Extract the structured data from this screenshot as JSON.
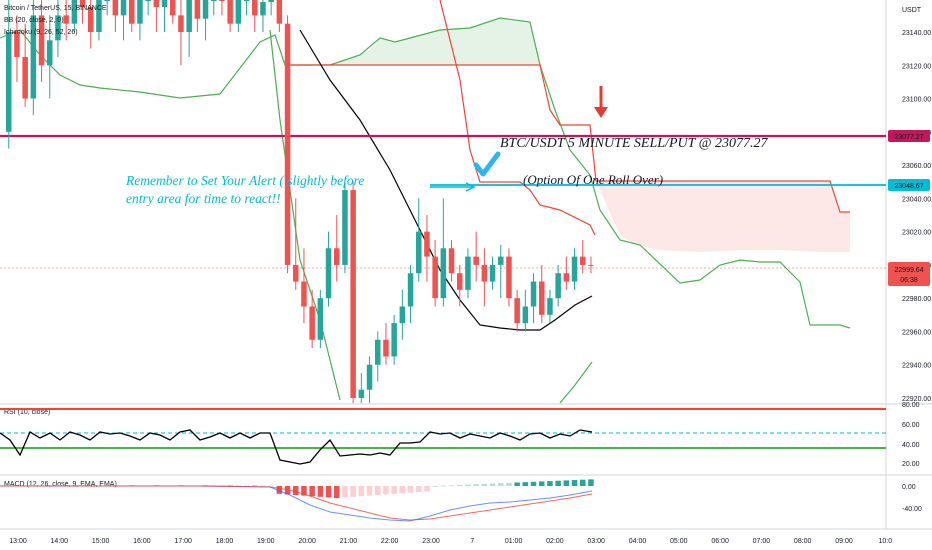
{
  "header": {
    "symbol": "Bitcoin / TetherUS, 15, BINANCE",
    "bb": "BB (20, close, 2, 0)",
    "ichimoku": "Ichimoku (9, 26, 52, 26)"
  },
  "rsi_label": "RSI (10, close)",
  "macd_label": "MACD (12, 26, close, 9, EMA, EMA)",
  "price_unit": "USDT",
  "price_ticks": [
    "23140.00",
    "23120.00",
    "23100.00",
    "23080.00",
    "23060.00",
    "23040.00",
    "23020.00",
    "23000.00",
    "22980.00",
    "22960.00",
    "22940.00",
    "22920.00"
  ],
  "rsi_ticks": [
    "80.00",
    "60.00",
    "40.00",
    "20.00"
  ],
  "macd_ticks": [
    "0.00",
    "-40.00"
  ],
  "time_ticks": [
    "13:00",
    "14:00",
    "15:00",
    "16:00",
    "17:00",
    "18:00",
    "19:00",
    "20:00",
    "21:00",
    "22:00",
    "23:00",
    "7",
    "01:00",
    "02:00",
    "03:00",
    "04:00",
    "05:00",
    "06:00",
    "07:00",
    "08:00",
    "09:00",
    "10:0"
  ],
  "badges": {
    "sell": "23077.27",
    "alert": "23048.67",
    "last": "22999.64",
    "countdown": "06:38"
  },
  "annotations": {
    "title": "BTC/USDT 5 MINUTE SELL/PUT @ 23077.27",
    "option": "(Option Of One Roll Over)",
    "alert_line1": "Remember to Set Your Alert ( slightly before",
    "alert_line2": "entry area for time to react!!"
  },
  "colors": {
    "up": "#26a69a",
    "down": "#ef5350",
    "sell_line": "#c2185b",
    "alert_line": "#00bcd4",
    "annotation_text": "#00bcd4",
    "arrow": "#e53935",
    "check": "#29b6f6",
    "bb_line": "#000000",
    "cloud_green": "#4caf50",
    "cloud_red": "#f44336",
    "rsi_upper": "#f44336",
    "rsi_lower": "#4caf50",
    "macd_line": "#2962ff",
    "signal_line": "#f44336"
  },
  "chart_data": {
    "type": "candlestick",
    "symbol": "BTCUSDT",
    "interval": "15",
    "price_range": [
      22920,
      23150
    ],
    "levels": {
      "sell": 23077.27,
      "alert": 23048.67,
      "last": 22999.64
    },
    "candles": [
      {
        "o": 23080,
        "h": 23160,
        "l": 23070,
        "c": 23140
      },
      {
        "o": 23140,
        "h": 23150,
        "l": 23110,
        "c": 23125
      },
      {
        "o": 23125,
        "h": 23145,
        "l": 23095,
        "c": 23100
      },
      {
        "o": 23100,
        "h": 23160,
        "l": 23090,
        "c": 23150
      },
      {
        "o": 23150,
        "h": 23170,
        "l": 23110,
        "c": 23120
      },
      {
        "o": 23120,
        "h": 23150,
        "l": 23100,
        "c": 23135
      },
      {
        "o": 23135,
        "h": 23160,
        "l": 23125,
        "c": 23150
      },
      {
        "o": 23150,
        "h": 23165,
        "l": 23135,
        "c": 23145
      },
      {
        "o": 23145,
        "h": 23170,
        "l": 23140,
        "c": 23165
      },
      {
        "o": 23165,
        "h": 23175,
        "l": 23145,
        "c": 23155
      },
      {
        "o": 23155,
        "h": 23160,
        "l": 23130,
        "c": 23140
      },
      {
        "o": 23140,
        "h": 23165,
        "l": 23135,
        "c": 23160
      },
      {
        "o": 23160,
        "h": 23175,
        "l": 23150,
        "c": 23170
      },
      {
        "o": 23170,
        "h": 23175,
        "l": 23140,
        "c": 23150
      },
      {
        "o": 23150,
        "h": 23165,
        "l": 23135,
        "c": 23160
      },
      {
        "o": 23160,
        "h": 23175,
        "l": 23140,
        "c": 23145
      },
      {
        "o": 23145,
        "h": 23165,
        "l": 23135,
        "c": 23160
      },
      {
        "o": 23160,
        "h": 23175,
        "l": 23150,
        "c": 23170
      },
      {
        "o": 23170,
        "h": 23175,
        "l": 23140,
        "c": 23155
      },
      {
        "o": 23155,
        "h": 23170,
        "l": 23140,
        "c": 23165
      },
      {
        "o": 23165,
        "h": 23175,
        "l": 23145,
        "c": 23150
      },
      {
        "o": 23150,
        "h": 23160,
        "l": 23120,
        "c": 23140
      },
      {
        "o": 23140,
        "h": 23165,
        "l": 23125,
        "c": 23160
      },
      {
        "o": 23160,
        "h": 23170,
        "l": 23140,
        "c": 23148
      },
      {
        "o": 23148,
        "h": 23165,
        "l": 23135,
        "c": 23160
      },
      {
        "o": 23160,
        "h": 23175,
        "l": 23150,
        "c": 23170
      },
      {
        "o": 23170,
        "h": 23175,
        "l": 23150,
        "c": 23160
      },
      {
        "o": 23160,
        "h": 23170,
        "l": 23140,
        "c": 23145
      },
      {
        "o": 23145,
        "h": 23165,
        "l": 23140,
        "c": 23160
      },
      {
        "o": 23160,
        "h": 23175,
        "l": 23150,
        "c": 23170
      },
      {
        "o": 23170,
        "h": 23175,
        "l": 23140,
        "c": 23150
      },
      {
        "o": 23150,
        "h": 23165,
        "l": 23140,
        "c": 23158
      },
      {
        "o": 23158,
        "h": 23175,
        "l": 23150,
        "c": 23170
      },
      {
        "o": 23170,
        "h": 23172,
        "l": 23140,
        "c": 23145
      },
      {
        "o": 23145,
        "h": 23150,
        "l": 22995,
        "c": 23000
      },
      {
        "o": 23000,
        "h": 23040,
        "l": 22985,
        "c": 22990
      },
      {
        "o": 22990,
        "h": 23010,
        "l": 22965,
        "c": 22975
      },
      {
        "o": 22975,
        "h": 22985,
        "l": 22950,
        "c": 22955
      },
      {
        "o": 22955,
        "h": 22985,
        "l": 22950,
        "c": 22980
      },
      {
        "o": 22980,
        "h": 23020,
        "l": 22975,
        "c": 23010
      },
      {
        "o": 23010,
        "h": 23030,
        "l": 22990,
        "c": 23000
      },
      {
        "o": 23000,
        "h": 23050,
        "l": 22995,
        "c": 23045
      },
      {
        "o": 23045,
        "h": 23050,
        "l": 22910,
        "c": 22920
      },
      {
        "o": 22920,
        "h": 22935,
        "l": 22905,
        "c": 22925
      },
      {
        "o": 22925,
        "h": 22945,
        "l": 22915,
        "c": 22940
      },
      {
        "o": 22940,
        "h": 22960,
        "l": 22930,
        "c": 22955
      },
      {
        "o": 22955,
        "h": 22965,
        "l": 22940,
        "c": 22945
      },
      {
        "o": 22945,
        "h": 22970,
        "l": 22940,
        "c": 22965
      },
      {
        "o": 22965,
        "h": 22985,
        "l": 22955,
        "c": 22975
      },
      {
        "o": 22975,
        "h": 23000,
        "l": 22965,
        "c": 22995
      },
      {
        "o": 22995,
        "h": 23040,
        "l": 22990,
        "c": 23020
      },
      {
        "o": 23020,
        "h": 23030,
        "l": 22990,
        "c": 23005
      },
      {
        "o": 23005,
        "h": 23015,
        "l": 22975,
        "c": 22980
      },
      {
        "o": 22980,
        "h": 23040,
        "l": 22975,
        "c": 23010
      },
      {
        "o": 23010,
        "h": 23015,
        "l": 22990,
        "c": 22995
      },
      {
        "o": 22995,
        "h": 23000,
        "l": 22975,
        "c": 22985
      },
      {
        "o": 22985,
        "h": 23010,
        "l": 22980,
        "c": 23005
      },
      {
        "o": 23005,
        "h": 23020,
        "l": 22990,
        "c": 23000
      },
      {
        "o": 23000,
        "h": 23010,
        "l": 22975,
        "c": 22990
      },
      {
        "o": 22990,
        "h": 23005,
        "l": 22985,
        "c": 23000
      },
      {
        "o": 23000,
        "h": 23012,
        "l": 22980,
        "c": 23005
      },
      {
        "o": 23005,
        "h": 23010,
        "l": 22975,
        "c": 22980
      },
      {
        "o": 22980,
        "h": 22985,
        "l": 22960,
        "c": 22965
      },
      {
        "o": 22965,
        "h": 22985,
        "l": 22960,
        "c": 22975
      },
      {
        "o": 22975,
        "h": 22995,
        "l": 22965,
        "c": 22990
      },
      {
        "o": 22990,
        "h": 23000,
        "l": 22965,
        "c": 22970
      },
      {
        "o": 22970,
        "h": 22985,
        "l": 22965,
        "c": 22980
      },
      {
        "o": 22980,
        "h": 23000,
        "l": 22975,
        "c": 22995
      },
      {
        "o": 22995,
        "h": 23005,
        "l": 22985,
        "c": 22990
      },
      {
        "o": 22990,
        "h": 23010,
        "l": 22985,
        "c": 23005
      },
      {
        "o": 23005,
        "h": 23015,
        "l": 22995,
        "c": 23000
      },
      {
        "o": 23000,
        "h": 23005,
        "l": 22995,
        "c": 22999.64
      }
    ],
    "rsi": {
      "range": [
        0,
        100
      ],
      "upper": 80,
      "lower": 40,
      "dashed": 54
    },
    "macd": {
      "range": [
        -60,
        10
      ]
    }
  }
}
